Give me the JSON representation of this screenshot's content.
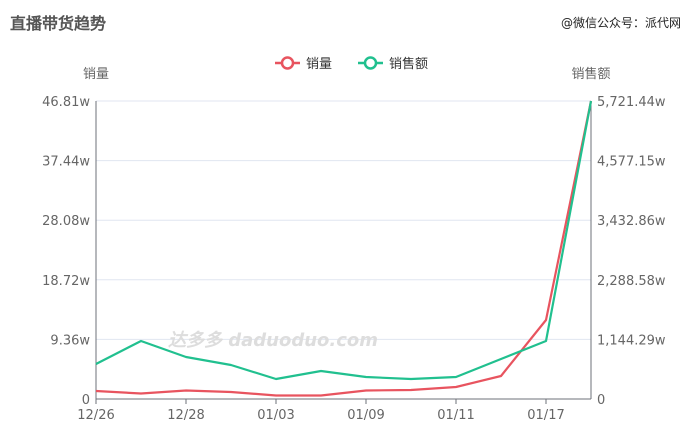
{
  "header": {
    "title": "直播带货趋势",
    "watermark": "@微信公众号：派代网"
  },
  "chart_data": {
    "type": "line",
    "categories": [
      "12/26",
      "",
      "12/28",
      "",
      "01/03",
      "",
      "01/09",
      "",
      "01/11",
      "",
      "01/17",
      ""
    ],
    "series": [
      {
        "name": "销量",
        "axis": "left",
        "color": "#e8545f",
        "values": [
          1.26,
          0.86,
          1.34,
          1.1,
          0.55,
          0.55,
          1.34,
          1.41,
          1.88,
          3.61,
          12.41,
          46.81
        ]
      },
      {
        "name": "销售额",
        "axis": "right",
        "color": "#21c08f",
        "values": [
          672,
          1114,
          806,
          653,
          384,
          538,
          422,
          384,
          422,
          768,
          1114,
          5721.44
        ]
      }
    ],
    "yLeft": {
      "label": "销量",
      "ticks": [
        "0",
        "9.36w",
        "18.72w",
        "28.08w",
        "37.44w",
        "46.81w"
      ],
      "ylim": [
        0,
        46.81
      ],
      "unit": "w"
    },
    "yRight": {
      "label": "销售额",
      "ticks": [
        "0",
        "1,144.29w",
        "2,288.58w",
        "3,432.86w",
        "4,577.15w",
        "5,721.44w"
      ],
      "ylim": [
        0,
        5721.44
      ]
    },
    "legend": "top-center",
    "grid": true,
    "watermark": "达多多 daduoduo.com"
  }
}
